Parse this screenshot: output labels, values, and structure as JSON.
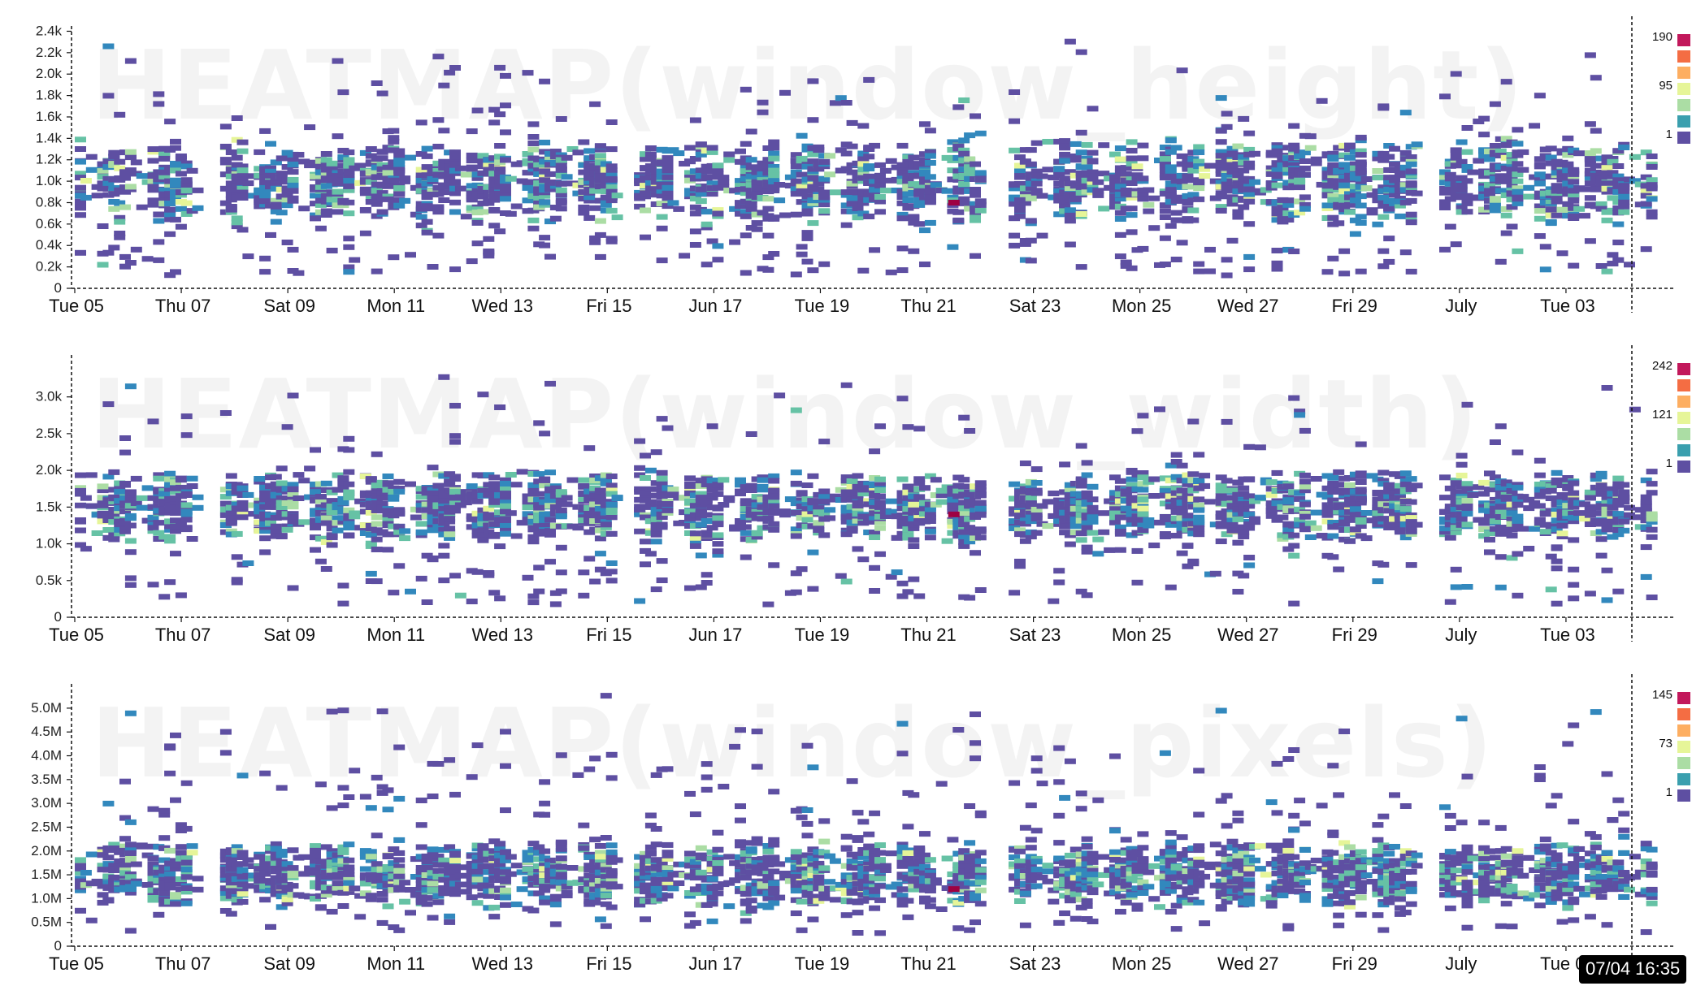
{
  "chart_data": [
    {
      "type": "heatmap",
      "title": "HEATMAP(window_height)",
      "x_ticks": [
        "Tue 05",
        "Thu 07",
        "Sat 09",
        "Mon 11",
        "Wed 13",
        "Fri 15",
        "Jun 17",
        "Tue 19",
        "Thu 21",
        "Sat 23",
        "Mon 25",
        "Wed 27",
        "Fri 29",
        "July",
        "Tue 03"
      ],
      "y_ticks": [
        "0",
        "0.2k",
        "0.4k",
        "0.6k",
        "0.8k",
        "1.0k",
        "1.2k",
        "1.4k",
        "1.6k",
        "1.8k",
        "2.0k",
        "2.2k",
        "2.4k"
      ],
      "ylim": [
        0,
        2400
      ],
      "legend": {
        "max": "190",
        "mid": "95",
        "min": "1"
      },
      "gaps": [
        [
          2.3,
          2.7
        ],
        [
          10.1,
          10.5
        ],
        [
          17.0,
          17.5
        ],
        [
          25.2,
          25.6
        ]
      ],
      "band": [
        600,
        1400
      ],
      "sparse_max": 2400,
      "hotspot": [
        16.4,
        800
      ]
    },
    {
      "type": "heatmap",
      "title": "HEATMAP(window_width)",
      "x_ticks": [
        "Tue 05",
        "Thu 07",
        "Sat 09",
        "Mon 11",
        "Wed 13",
        "Fri 15",
        "Jun 17",
        "Tue 19",
        "Thu 21",
        "Sat 23",
        "Mon 25",
        "Wed 27",
        "Fri 29",
        "July",
        "Tue 03"
      ],
      "y_ticks": [
        "0",
        "0.5k",
        "1.0k",
        "1.5k",
        "2.0k",
        "2.5k",
        "3.0k"
      ],
      "ylim": [
        0,
        3500
      ],
      "legend": {
        "max": "242",
        "mid": "121",
        "min": "1"
      },
      "gaps": [
        [
          2.3,
          2.7
        ],
        [
          10.1,
          10.5
        ],
        [
          17.0,
          17.5
        ],
        [
          25.2,
          25.6
        ]
      ],
      "band": [
        1000,
        2000
      ],
      "sparse_max": 3450,
      "hotspot": [
        16.4,
        1400
      ]
    },
    {
      "type": "heatmap",
      "title": "HEATMAP(window_pixels)",
      "x_ticks": [
        "Tue 05",
        "Thu 07",
        "Sat 09",
        "Mon 11",
        "Wed 13",
        "Fri 15",
        "Jun 17",
        "Tue 19",
        "Thu 21",
        "Sat 23",
        "Mon 25",
        "Wed 27",
        "Fri 29",
        "July",
        "Tue 03"
      ],
      "y_ticks": [
        "0",
        "0.5M",
        "1.0M",
        "1.5M",
        "2.0M",
        "2.5M",
        "3.0M",
        "3.5M",
        "4.0M",
        "4.5M",
        "5.0M"
      ],
      "ylim": [
        0,
        5400000
      ],
      "legend": {
        "max": "145",
        "mid": "73",
        "min": "1"
      },
      "gaps": [
        [
          2.3,
          2.7
        ],
        [
          10.1,
          10.5
        ],
        [
          17.0,
          17.5
        ],
        [
          25.2,
          25.6
        ]
      ],
      "band": [
        800000,
        2200000
      ],
      "sparse_max": 5400000,
      "hotspot": [
        16.4,
        1200000
      ]
    }
  ],
  "palette": [
    "#5e4fa2",
    "#3288bd",
    "#66c2a5",
    "#abdda4",
    "#e6f598",
    "#fee08b",
    "#fdae61",
    "#f46d43",
    "#d53e4f",
    "#9e0142"
  ],
  "legend_swatches": [
    "#c2185b",
    "#f46d43",
    "#fdae61",
    "#e6f598",
    "#abdda4",
    "#3a9fae",
    "#5e4fa2"
  ],
  "axis_color": "#111111",
  "hover_label": "07/04 16:35"
}
